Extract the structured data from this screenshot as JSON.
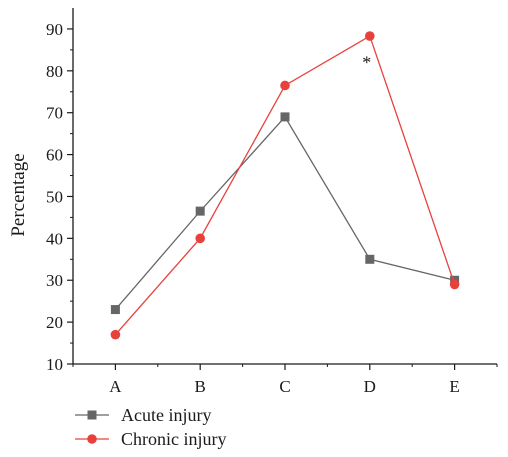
{
  "chart_data": {
    "type": "line",
    "title": "",
    "xlabel": "",
    "ylabel": "Percentage",
    "categories": [
      "A",
      "B",
      "C",
      "D",
      "E"
    ],
    "ylim": [
      10,
      95
    ],
    "yticks": [
      10,
      20,
      30,
      40,
      50,
      60,
      70,
      80,
      90
    ],
    "grid": false,
    "legend_position": "bottom-left",
    "series": [
      {
        "name": "Acute injury",
        "values": [
          23,
          46.5,
          69,
          35,
          30
        ],
        "color": "#666666",
        "marker": "square"
      },
      {
        "name": "Chronic injury",
        "values": [
          17,
          40,
          76.5,
          88.3,
          29
        ],
        "color": "#e8413c",
        "marker": "circle"
      }
    ],
    "annotations": [
      {
        "text": "*",
        "category": "D",
        "y": 83
      }
    ]
  }
}
